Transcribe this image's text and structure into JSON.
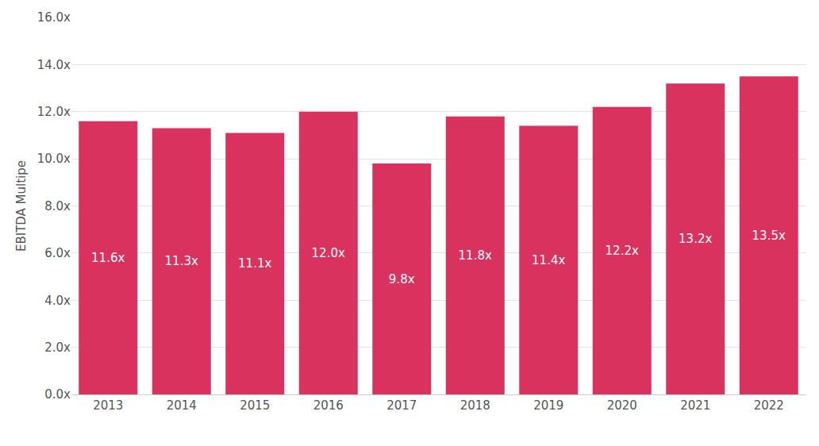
{
  "chart_data": {
    "type": "bar",
    "y_label": "EBITDA Multipe",
    "categories": [
      "2013",
      "2014",
      "2015",
      "2016",
      "2017",
      "2018",
      "2019",
      "2020",
      "2021",
      "2022"
    ],
    "values": [
      11.6,
      11.3,
      11.1,
      12.0,
      9.8,
      11.8,
      11.4,
      12.2,
      13.2,
      13.5
    ],
    "value_labels": [
      "11.6x",
      "11.3x",
      "11.1x",
      "12.0x",
      "9.8x",
      "11.8x",
      "11.4x",
      "12.2x",
      "13.2x",
      "13.5x"
    ],
    "data_labels": true,
    "color": "#d9325e",
    "ylim": [
      0,
      16
    ],
    "yticks": [
      {
        "value": 0,
        "label": "0.0x"
      },
      {
        "value": 2,
        "label": "2.0x"
      },
      {
        "value": 4,
        "label": "4.0x"
      },
      {
        "value": 6,
        "label": "6.0x"
      },
      {
        "value": 8,
        "label": "8.0x"
      },
      {
        "value": 10,
        "label": "10.0x"
      },
      {
        "value": 12,
        "label": "12.0x"
      },
      {
        "value": 14,
        "label": "14.0x"
      },
      {
        "value": 16,
        "label": "16.0x"
      }
    ],
    "grid": true
  }
}
